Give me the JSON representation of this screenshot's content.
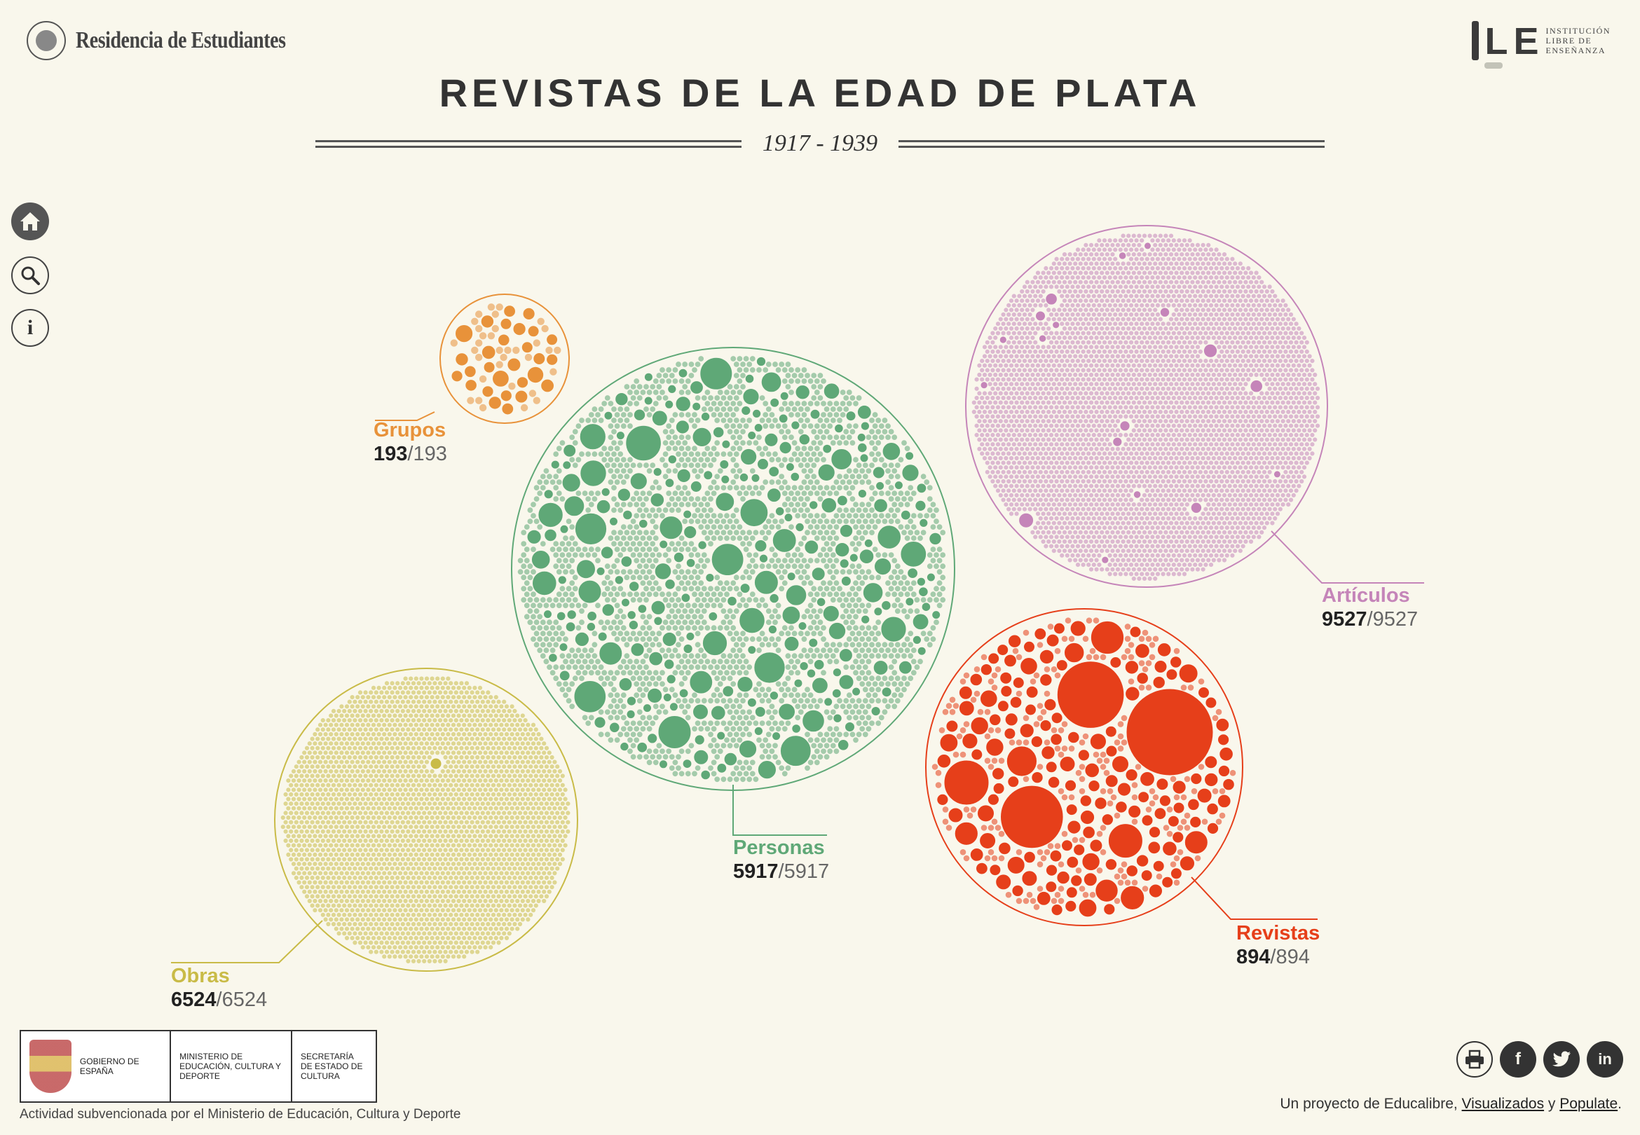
{
  "header": {
    "brand_left": "Residencia de Estudiantes",
    "brand_right_lines": [
      "INSTITUCIÓN",
      "LIBRE DE",
      "ENSEÑANZA"
    ],
    "title": "REVISTAS DE LA EDAD DE PLATA",
    "subtitle": "1917 - 1939"
  },
  "nav": [
    "home-icon",
    "search-icon",
    "info-icon"
  ],
  "groups": [
    {
      "name": "Grupos",
      "shown": "193",
      "total": "193",
      "color": "#e8923a"
    },
    {
      "name": "Personas",
      "shown": "5917",
      "total": "5917",
      "color": "#5fa877"
    },
    {
      "name": "Artículos",
      "shown": "9527",
      "total": "9527",
      "color": "#c585b9"
    },
    {
      "name": "Obras",
      "shown": "6524",
      "total": "6524",
      "color": "#c9bb47"
    },
    {
      "name": "Revistas",
      "shown": "894",
      "total": "894",
      "color": "#e63f1a"
    }
  ],
  "footer": {
    "gov_cells": [
      "Gobierno de España",
      "Ministerio de Educación, Cultura y Deporte",
      "Secretaría de Estado de Cultura"
    ],
    "note": "Actividad subvencionada por el Ministerio de Educación, Cultura y Deporte",
    "social": [
      "print-icon",
      "facebook-icon",
      "twitter-icon",
      "linkedin-icon"
    ],
    "credits_prefix": "Un proyecto de Educalibre, ",
    "link1": "Visualizados",
    "credits_mid": " y ",
    "link2": "Populate",
    "credits_suffix": "."
  }
}
